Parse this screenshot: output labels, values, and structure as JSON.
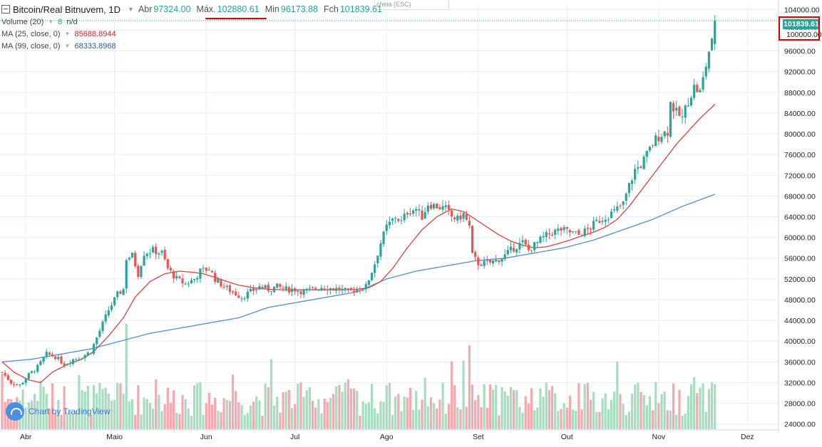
{
  "legend": {
    "title": "Bitcoin/Real Bitnuvem, 1D",
    "open_label": "Abr",
    "open_value": "97324.00",
    "high_label": "Máx.",
    "high_value": "102880.61",
    "low_label": "Min",
    "low_value": "96173.88",
    "close_label": "Fch",
    "close_value": "101839.61"
  },
  "studies": {
    "volume_label": "Volume (20)",
    "volume_value": "8",
    "volume_nd": "n/d",
    "ma25_label": "MA (25, close, 0)",
    "ma25_value": "85688.8944",
    "ma99_label": "MA (99, close, 0)",
    "ma99_value": "68333.8968"
  },
  "tooltip_text": "cheia (ESC)",
  "watermark_text": "Chart by TradingView",
  "price_tag": "101839.61",
  "price_tag_round": "100000.00",
  "colors": {
    "up": "#26a69a",
    "down": "#ef5350",
    "up_volume": "#a7dcc0",
    "down_volume": "#f4a8b0",
    "ma25": "#d9443f",
    "ma99": "#4f8fd1",
    "grid": "#e8eef5",
    "annotation": "#e00000"
  },
  "chart_data": {
    "type": "candlestick",
    "title": "Bitcoin/Real Bitnuvem, 1D",
    "ylim": [
      23000,
      105000
    ],
    "y_ticks": [
      "24000.00",
      "28000.00",
      "32000.00",
      "36000.00",
      "40000.00",
      "44000.00",
      "48000.00",
      "52000.00",
      "56000.00",
      "60000.00",
      "64000.00",
      "68000.00",
      "72000.00",
      "76000.00",
      "80000.00",
      "84000.00",
      "88000.00",
      "92000.00",
      "96000.00",
      "100000.00",
      "104000.00"
    ],
    "x_ticks": [
      {
        "label": "Abr",
        "day": 8
      },
      {
        "label": "Maio",
        "day": 38
      },
      {
        "label": "Jun",
        "day": 69
      },
      {
        "label": "Jul",
        "day": 99
      },
      {
        "label": "Ago",
        "day": 130
      },
      {
        "label": "Set",
        "day": 161
      },
      {
        "label": "Out",
        "day": 191
      },
      {
        "label": "Nov",
        "day": 222
      },
      {
        "label": "Dez",
        "day": 252
      }
    ],
    "x_range": [
      0,
      270
    ],
    "close_anchors": [
      [
        0,
        34000
      ],
      [
        3,
        32000
      ],
      [
        6,
        31500
      ],
      [
        9,
        33500
      ],
      [
        12,
        35000
      ],
      [
        15,
        37500
      ],
      [
        18,
        37000
      ],
      [
        21,
        35500
      ],
      [
        24,
        36500
      ],
      [
        27,
        37000
      ],
      [
        30,
        38000
      ],
      [
        33,
        42000
      ],
      [
        36,
        46000
      ],
      [
        39,
        49000
      ],
      [
        41,
        50000
      ],
      [
        42,
        56000
      ],
      [
        44,
        56500
      ],
      [
        46,
        53000
      ],
      [
        48,
        57000
      ],
      [
        51,
        57500
      ],
      [
        54,
        57000
      ],
      [
        56,
        54000
      ],
      [
        59,
        52000
      ],
      [
        62,
        51000
      ],
      [
        65,
        52000
      ],
      [
        67,
        53500
      ],
      [
        70,
        54000
      ],
      [
        72,
        52000
      ],
      [
        75,
        50500
      ],
      [
        78,
        49500
      ],
      [
        81,
        48500
      ],
      [
        84,
        49500
      ],
      [
        87,
        50500
      ],
      [
        90,
        50000
      ],
      [
        93,
        50500
      ],
      [
        96,
        50000
      ],
      [
        99,
        50000
      ],
      [
        102,
        49500
      ],
      [
        105,
        50000
      ],
      [
        108,
        50500
      ],
      [
        111,
        50200
      ],
      [
        114,
        50000
      ],
      [
        117,
        49500
      ],
      [
        120,
        50000
      ],
      [
        123,
        50500
      ],
      [
        126,
        55000
      ],
      [
        128,
        59000
      ],
      [
        130,
        62000
      ],
      [
        133,
        64000
      ],
      [
        135,
        63000
      ],
      [
        137,
        65000
      ],
      [
        140,
        65500
      ],
      [
        142,
        64000
      ],
      [
        144,
        66500
      ],
      [
        147,
        66000
      ],
      [
        150,
        65500
      ],
      [
        152,
        64000
      ],
      [
        154,
        63500
      ],
      [
        156,
        64500
      ],
      [
        158,
        62000
      ],
      [
        159,
        56500
      ],
      [
        161,
        55000
      ],
      [
        164,
        55000
      ],
      [
        167,
        55500
      ],
      [
        170,
        56500
      ],
      [
        173,
        58000
      ],
      [
        176,
        59000
      ],
      [
        178,
        57500
      ],
      [
        180,
        58500
      ],
      [
        183,
        60000
      ],
      [
        186,
        61000
      ],
      [
        189,
        61500
      ],
      [
        192,
        61000
      ],
      [
        195,
        60500
      ],
      [
        198,
        61500
      ],
      [
        201,
        63000
      ],
      [
        204,
        64000
      ],
      [
        207,
        65000
      ],
      [
        210,
        66500
      ],
      [
        212,
        70000
      ],
      [
        214,
        73000
      ],
      [
        216,
        74000
      ],
      [
        218,
        76000
      ],
      [
        221,
        79000
      ],
      [
        223,
        80000
      ],
      [
        225,
        80500
      ],
      [
        226,
        86000
      ],
      [
        228,
        84000
      ],
      [
        230,
        83000
      ],
      [
        232,
        86500
      ],
      [
        234,
        89000
      ],
      [
        236,
        88000
      ],
      [
        237,
        90500
      ],
      [
        239,
        96000
      ],
      [
        240,
        97500
      ],
      [
        241,
        101839.61
      ]
    ],
    "ma25_anchors": [
      [
        0,
        36000
      ],
      [
        4,
        34000
      ],
      [
        9,
        32500
      ],
      [
        13,
        32000
      ],
      [
        17,
        34000
      ],
      [
        22,
        35500
      ],
      [
        27,
        36500
      ],
      [
        31,
        38000
      ],
      [
        36,
        41000
      ],
      [
        41,
        44500
      ],
      [
        45,
        48500
      ],
      [
        50,
        51500
      ],
      [
        55,
        53000
      ],
      [
        60,
        53500
      ],
      [
        64,
        53300
      ],
      [
        68,
        53000
      ],
      [
        72,
        52300
      ],
      [
        76,
        51500
      ],
      [
        80,
        50800
      ],
      [
        85,
        50300
      ],
      [
        90,
        50000
      ],
      [
        95,
        49900
      ],
      [
        100,
        49900
      ],
      [
        105,
        49900
      ],
      [
        110,
        49900
      ],
      [
        115,
        49900
      ],
      [
        120,
        50000
      ],
      [
        124,
        50300
      ],
      [
        128,
        51500
      ],
      [
        132,
        54000
      ],
      [
        137,
        58000
      ],
      [
        142,
        61500
      ],
      [
        147,
        64000
      ],
      [
        152,
        65500
      ],
      [
        156,
        65000
      ],
      [
        160,
        63500
      ],
      [
        164,
        62000
      ],
      [
        168,
        60500
      ],
      [
        172,
        59300
      ],
      [
        176,
        58500
      ],
      [
        180,
        58000
      ],
      [
        184,
        58200
      ],
      [
        188,
        58800
      ],
      [
        192,
        59500
      ],
      [
        196,
        60300
      ],
      [
        200,
        61000
      ],
      [
        204,
        62000
      ],
      [
        208,
        63500
      ],
      [
        212,
        66000
      ],
      [
        216,
        69000
      ],
      [
        220,
        72000
      ],
      [
        224,
        75000
      ],
      [
        228,
        78000
      ],
      [
        232,
        80500
      ],
      [
        236,
        83000
      ],
      [
        241,
        85688.8944
      ]
    ],
    "ma99_anchors": [
      [
        0,
        36000
      ],
      [
        10,
        36500
      ],
      [
        20,
        37500
      ],
      [
        30,
        38500
      ],
      [
        40,
        40000
      ],
      [
        50,
        41500
      ],
      [
        60,
        42500
      ],
      [
        70,
        43500
      ],
      [
        80,
        44500
      ],
      [
        90,
        46500
      ],
      [
        100,
        47500
      ],
      [
        110,
        48500
      ],
      [
        120,
        49500
      ],
      [
        130,
        52000
      ],
      [
        140,
        53500
      ],
      [
        150,
        54500
      ],
      [
        160,
        55500
      ],
      [
        170,
        56000
      ],
      [
        180,
        57000
      ],
      [
        190,
        58000
      ],
      [
        200,
        59500
      ],
      [
        210,
        61500
      ],
      [
        220,
        63500
      ],
      [
        230,
        66000
      ],
      [
        241,
        68333.8968
      ]
    ],
    "volume_ylim": [
      0,
      100
    ]
  }
}
